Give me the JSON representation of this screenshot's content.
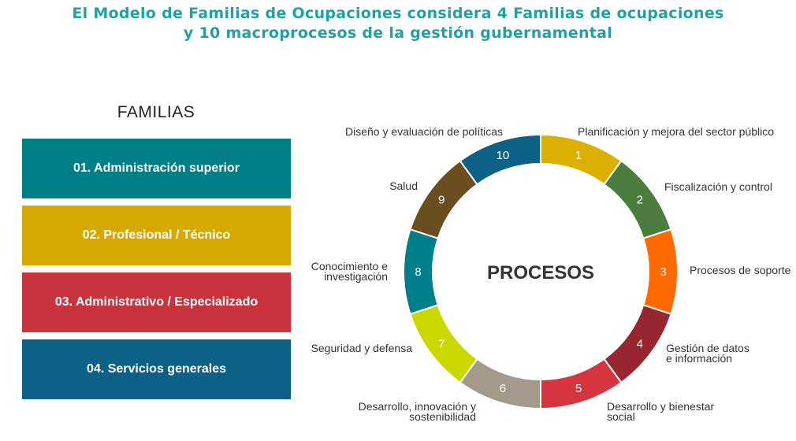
{
  "title": {
    "line1": "El Modelo de Familias de Ocupaciones considera 4 Familias de ocupaciones",
    "line2": "y 10 macroprocesos de la gestión gubernamental"
  },
  "familias": {
    "heading": "FAMILIAS",
    "items": [
      {
        "label": "01. Administración superior",
        "color": "#007f86"
      },
      {
        "label": "02. Profesional / Técnico",
        "color": "#d6a800"
      },
      {
        "label": "03. Administrativo / Especializado",
        "color": "#c8333d"
      },
      {
        "label": "04. Servicios generales",
        "color": "#0d6186"
      }
    ]
  },
  "procesos": {
    "center_label": "PROCESOS",
    "segments": [
      {
        "number": "1",
        "color": "#dbb000",
        "label": [
          "Planificación y mejora del sector público"
        ]
      },
      {
        "number": "2",
        "color": "#4b7d3e",
        "label": [
          "Fiscalización y control"
        ]
      },
      {
        "number": "3",
        "color": "#ff6a00",
        "label": [
          "Procesos de soporte"
        ]
      },
      {
        "number": "4",
        "color": "#972630",
        "label": [
          "Gestión de datos",
          "e información"
        ]
      },
      {
        "number": "5",
        "color": "#d4353e",
        "label": [
          "Desarrollo y bienestar",
          "social"
        ]
      },
      {
        "number": "6",
        "color": "#a39a8c",
        "label": [
          "Desarrollo, innovación y",
          "sostenibilidad"
        ]
      },
      {
        "number": "7",
        "color": "#cad800",
        "label": [
          "Seguridad y defensa"
        ]
      },
      {
        "number": "8",
        "color": "#007f8a",
        "label": [
          "Conocimiento e",
          "investigación"
        ]
      },
      {
        "number": "9",
        "color": "#6b4e1f",
        "label": [
          "Salud"
        ]
      },
      {
        "number": "10",
        "color": "#0d6186",
        "label": [
          "Diseño y evaluación de políticas"
        ]
      }
    ]
  }
}
